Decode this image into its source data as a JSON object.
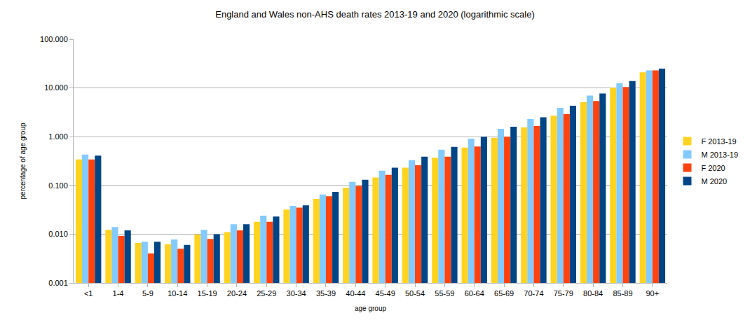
{
  "chart_data": {
    "type": "bar",
    "title": "England and Wales non-AHS death rates 2013-19 and 2020 (logarithmic scale)",
    "x_label": "age group",
    "y_label": "percentage of age group",
    "categories": [
      "<1",
      "1-4",
      "5-9",
      "10-14",
      "15-19",
      "20-24",
      "25-29",
      "30-34",
      "35-39",
      "40-44",
      "45-49",
      "50-54",
      "55-59",
      "60-64",
      "65-69",
      "70-74",
      "75-79",
      "80-84",
      "85-89",
      "90+"
    ],
    "series": [
      {
        "name": "F 2013-19",
        "color": "#ffd320",
        "values": [
          0.34,
          0.0123,
          0.0066,
          0.0062,
          0.0098,
          0.011,
          0.018,
          0.032,
          0.053,
          0.09,
          0.145,
          0.23,
          0.37,
          0.6,
          0.95,
          1.55,
          2.7,
          5.1,
          10,
          21
        ]
      },
      {
        "name": "M 2013-19",
        "color": "#83caff",
        "values": [
          0.43,
          0.014,
          0.007,
          0.0078,
          0.0123,
          0.016,
          0.024,
          0.038,
          0.065,
          0.118,
          0.2,
          0.33,
          0.54,
          0.91,
          1.45,
          2.3,
          3.9,
          7.0,
          12.5,
          23
        ]
      },
      {
        "name": "F 2020",
        "color": "#ff420e",
        "values": [
          0.34,
          0.0092,
          0.004,
          0.005,
          0.008,
          0.012,
          0.018,
          0.035,
          0.06,
          0.098,
          0.165,
          0.26,
          0.39,
          0.63,
          1.0,
          1.65,
          2.9,
          5.4,
          10.5,
          23
        ]
      },
      {
        "name": "M 2020",
        "color": "#004586",
        "values": [
          0.41,
          0.012,
          0.007,
          0.006,
          0.01,
          0.016,
          0.023,
          0.039,
          0.074,
          0.13,
          0.23,
          0.39,
          0.62,
          1.0,
          1.6,
          2.5,
          4.3,
          7.7,
          13.8,
          25
        ]
      }
    ],
    "ylim": [
      0.001,
      100
    ],
    "yticks": [
      {
        "value": 0.001,
        "label": "0.001"
      },
      {
        "value": 0.01,
        "label": "0.010"
      },
      {
        "value": 0.1,
        "label": "0.100"
      },
      {
        "value": 1,
        "label": "1.000"
      },
      {
        "value": 10,
        "label": "10.000"
      },
      {
        "value": 100,
        "label": "100.000"
      }
    ],
    "log": "y",
    "grid": true,
    "legend": "right"
  }
}
